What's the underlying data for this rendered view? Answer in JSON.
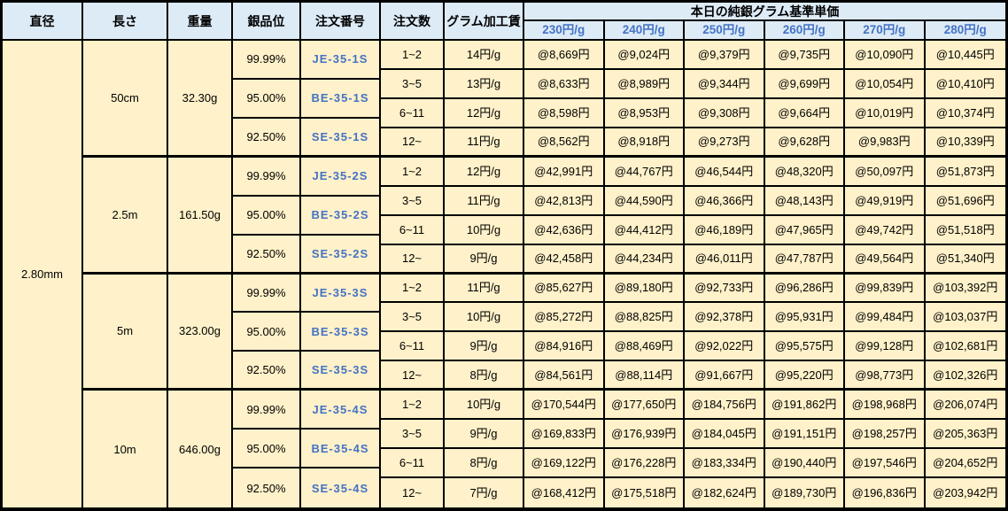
{
  "header": {
    "columns": [
      "直径",
      "長さ",
      "重量",
      "銀品位",
      "注文番号",
      "注文数",
      "グラム加工賃"
    ],
    "price_group_title": "本日の純銀グラム基準単価",
    "price_columns": [
      "230円/g",
      "240円/g",
      "250円/g",
      "260円/g",
      "270円/g",
      "280円/g"
    ]
  },
  "diameter": "2.80mm",
  "blocks": [
    {
      "length": "50cm",
      "weight": "32.30g",
      "purities": [
        {
          "purity": "99.99%",
          "order_code": "JE-35-1S"
        },
        {
          "purity": "95.00%",
          "order_code": "BE-35-1S"
        },
        {
          "purity": "92.50%",
          "order_code": "SE-35-1S"
        }
      ],
      "rows": [
        {
          "qty": "1~2",
          "fee": "14円/g",
          "prices": [
            "@8,669円",
            "@9,024円",
            "@9,379円",
            "@9,735円",
            "@10,090円",
            "@10,445円"
          ]
        },
        {
          "qty": "3~5",
          "fee": "13円/g",
          "prices": [
            "@8,633円",
            "@8,989円",
            "@9,344円",
            "@9,699円",
            "@10,054円",
            "@10,410円"
          ]
        },
        {
          "qty": "6~11",
          "fee": "12円/g",
          "prices": [
            "@8,598円",
            "@8,953円",
            "@9,308円",
            "@9,664円",
            "@10,019円",
            "@10,374円"
          ]
        },
        {
          "qty": "12~",
          "fee": "11円/g",
          "prices": [
            "@8,562円",
            "@8,918円",
            "@9,273円",
            "@9,628円",
            "@9,983円",
            "@10,339円"
          ]
        }
      ]
    },
    {
      "length": "2.5m",
      "weight": "161.50g",
      "purities": [
        {
          "purity": "99.99%",
          "order_code": "JE-35-2S"
        },
        {
          "purity": "95.00%",
          "order_code": "BE-35-2S"
        },
        {
          "purity": "92.50%",
          "order_code": "SE-35-2S"
        }
      ],
      "rows": [
        {
          "qty": "1~2",
          "fee": "12円/g",
          "prices": [
            "@42,991円",
            "@44,767円",
            "@46,544円",
            "@48,320円",
            "@50,097円",
            "@51,873円"
          ]
        },
        {
          "qty": "3~5",
          "fee": "11円/g",
          "prices": [
            "@42,813円",
            "@44,590円",
            "@46,366円",
            "@48,143円",
            "@49,919円",
            "@51,696円"
          ]
        },
        {
          "qty": "6~11",
          "fee": "10円/g",
          "prices": [
            "@42,636円",
            "@44,412円",
            "@46,189円",
            "@47,965円",
            "@49,742円",
            "@51,518円"
          ]
        },
        {
          "qty": "12~",
          "fee": "9円/g",
          "prices": [
            "@42,458円",
            "@44,234円",
            "@46,011円",
            "@47,787円",
            "@49,564円",
            "@51,340円"
          ]
        }
      ]
    },
    {
      "length": "5m",
      "weight": "323.00g",
      "purities": [
        {
          "purity": "99.99%",
          "order_code": "JE-35-3S"
        },
        {
          "purity": "95.00%",
          "order_code": "BE-35-3S"
        },
        {
          "purity": "92.50%",
          "order_code": "SE-35-3S"
        }
      ],
      "rows": [
        {
          "qty": "1~2",
          "fee": "11円/g",
          "prices": [
            "@85,627円",
            "@89,180円",
            "@92,733円",
            "@96,286円",
            "@99,839円",
            "@103,392円"
          ]
        },
        {
          "qty": "3~5",
          "fee": "10円/g",
          "prices": [
            "@85,272円",
            "@88,825円",
            "@92,378円",
            "@95,931円",
            "@99,484円",
            "@103,037円"
          ]
        },
        {
          "qty": "6~11",
          "fee": "9円/g",
          "prices": [
            "@84,916円",
            "@88,469円",
            "@92,022円",
            "@95,575円",
            "@99,128円",
            "@102,681円"
          ]
        },
        {
          "qty": "12~",
          "fee": "8円/g",
          "prices": [
            "@84,561円",
            "@88,114円",
            "@91,667円",
            "@95,220円",
            "@98,773円",
            "@102,326円"
          ]
        }
      ]
    },
    {
      "length": "10m",
      "weight": "646.00g",
      "purities": [
        {
          "purity": "99.99%",
          "order_code": "JE-35-4S"
        },
        {
          "purity": "95.00%",
          "order_code": "BE-35-4S"
        },
        {
          "purity": "92.50%",
          "order_code": "SE-35-4S"
        }
      ],
      "rows": [
        {
          "qty": "1~2",
          "fee": "10円/g",
          "prices": [
            "@170,544円",
            "@177,650円",
            "@184,756円",
            "@191,862円",
            "@198,968円",
            "@206,074円"
          ]
        },
        {
          "qty": "3~5",
          "fee": "9円/g",
          "prices": [
            "@169,833円",
            "@176,939円",
            "@184,045円",
            "@191,151円",
            "@198,257円",
            "@205,363円"
          ]
        },
        {
          "qty": "6~11",
          "fee": "8円/g",
          "prices": [
            "@169,122円",
            "@176,228円",
            "@183,334円",
            "@190,440円",
            "@197,546円",
            "@204,652円"
          ]
        },
        {
          "qty": "12~",
          "fee": "7円/g",
          "prices": [
            "@168,412円",
            "@175,518円",
            "@182,624円",
            "@189,730円",
            "@196,836円",
            "@203,942円"
          ]
        }
      ]
    }
  ],
  "colors": {
    "header_bg": "#DDEBF7",
    "body_bg": "#FFF1C9",
    "accent_blue": "#4472C4",
    "border": "#000000"
  }
}
